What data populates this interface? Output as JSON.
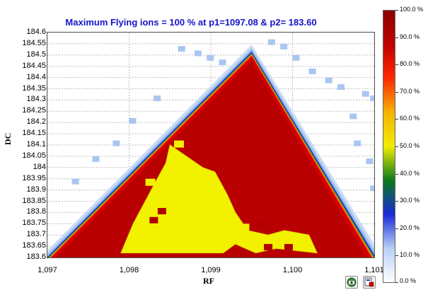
{
  "chart_data": {
    "type": "heatmap",
    "title": "Maximum Flying ions =  100 % at p1=1097.08 & p2= 183.60",
    "xlabel": "RF",
    "ylabel": "DC",
    "xlim": [
      1097,
      1101
    ],
    "ylim": [
      183.6,
      184.6
    ],
    "x_ticks": [
      "1,097",
      "1,098",
      "1,099",
      "1,100",
      "1,101"
    ],
    "y_ticks": [
      "183.6",
      "183.65",
      "183.7",
      "183.75",
      "183.8",
      "183.85",
      "183.9",
      "183.95",
      "184",
      "184.05",
      "184.1",
      "184.15",
      "184.2",
      "184.25",
      "184.3",
      "184.35",
      "184.4",
      "184.45",
      "184.5",
      "184.55",
      "184.6"
    ],
    "colorbar": {
      "labels": [
        "100.0 %",
        "90.0 %",
        "80.0 %",
        "70.0 %",
        "60.0 %",
        "50.0 %",
        "40.0 %",
        "30.0 %",
        "20.0 %",
        "10.0 %",
        "0.0 %"
      ],
      "stops": [
        "#ffffff",
        "#b8d0f4",
        "#1a2ad8",
        "#0a7a1a",
        "#f0ec00",
        "#f4b400",
        "#ff2a00",
        "#c00000",
        "#8c0000"
      ]
    },
    "stability_region": {
      "apex": {
        "x": 1099.5,
        "y": 184.5
      },
      "left_base": {
        "x": 1097.0,
        "y": 183.6
      },
      "right_base": {
        "x": 1101.0,
        "y": 183.6
      },
      "interior_percent": 90,
      "edge_percent_range": [
        0,
        100
      ]
    },
    "max_point": {
      "p1": 1097.08,
      "p2": 183.6,
      "value_percent": 100
    }
  },
  "toolbar": {
    "btn1_icon": "camera-icon",
    "btn2_icon": "save-image-icon"
  }
}
